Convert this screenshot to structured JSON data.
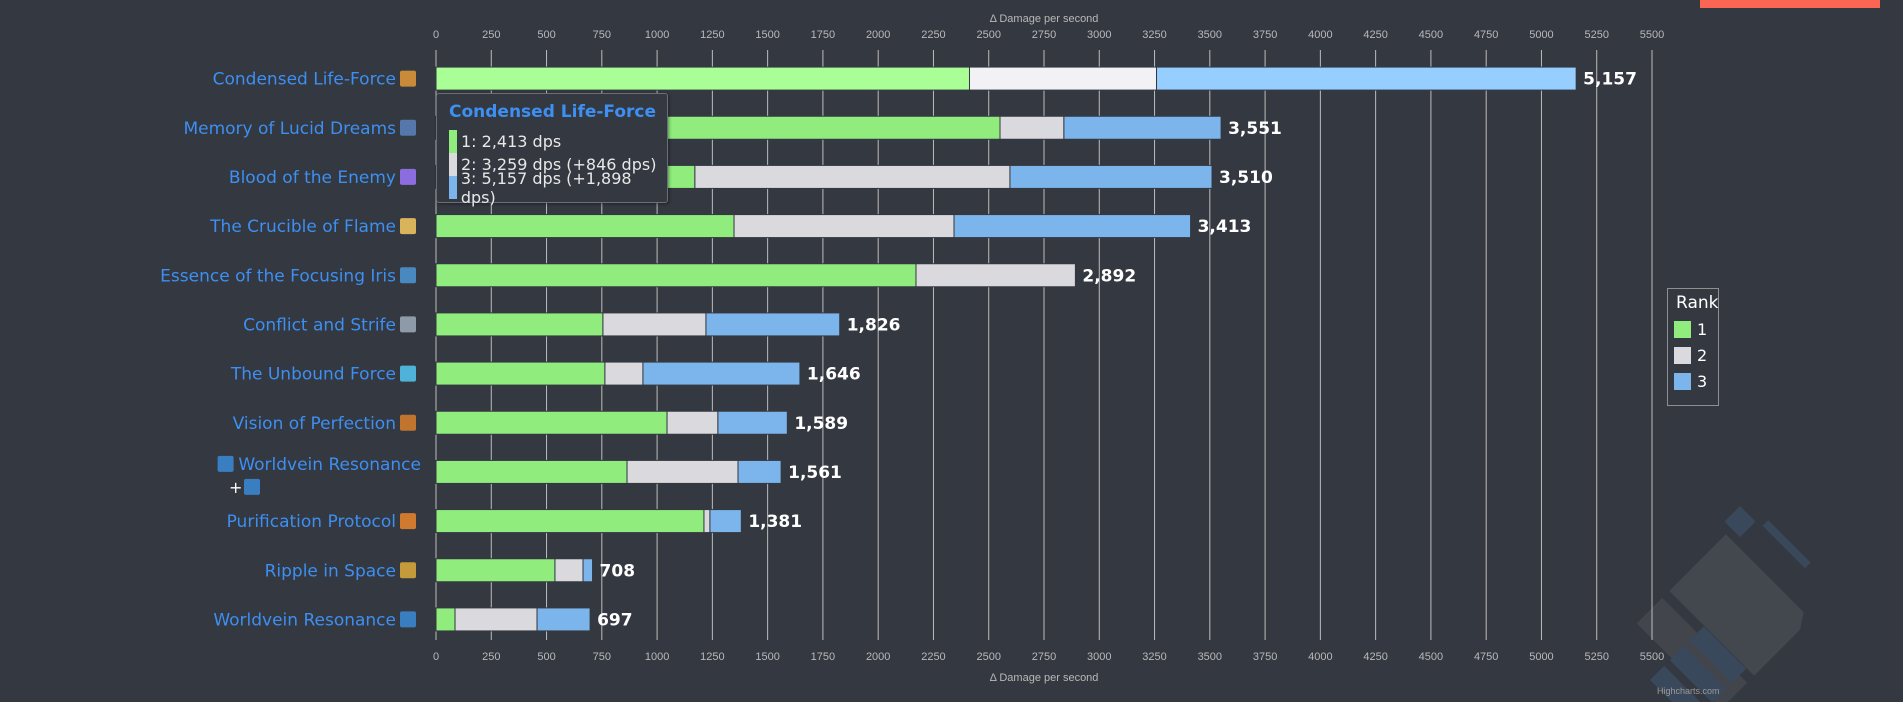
{
  "chart_data": {
    "type": "bar",
    "orientation": "horizontal",
    "stacking": "incremental ranks (rank 2 and 3 bars extend from previous rank)",
    "xlabel": "Δ Damage per second",
    "ylabel": "",
    "xlim": [
      0,
      5500
    ],
    "x_ticks": [
      "0",
      "250",
      "500",
      "750",
      "1000",
      "1250",
      "1500",
      "1750",
      "2000",
      "2250",
      "2500",
      "2750",
      "3000",
      "3250",
      "3500",
      "3750",
      "4000",
      "4250",
      "4500",
      "4750",
      "5000",
      "5250",
      "5500"
    ],
    "grid": true,
    "legend": {
      "title": "Rank",
      "position": "right",
      "entries": [
        "1",
        "2",
        "3"
      ]
    },
    "categories": [
      {
        "label": "Condensed Life-Force",
        "icon": "condensed-life-force-icon",
        "prefix": ""
      },
      {
        "label": "Memory of Lucid Dreams",
        "icon": "memory-of-lucid-dreams-icon",
        "prefix": ""
      },
      {
        "label": "Blood of the Enemy",
        "icon": "blood-of-the-enemy-icon",
        "prefix": ""
      },
      {
        "label": "The Crucible of Flame",
        "icon": "crucible-of-flame-icon",
        "prefix": ""
      },
      {
        "label": "Essence of the Focusing Iris",
        "icon": "focusing-iris-icon",
        "prefix": ""
      },
      {
        "label": "Conflict and Strife",
        "icon": "conflict-and-strife-icon",
        "prefix": ""
      },
      {
        "label": "The Unbound Force",
        "icon": "unbound-force-icon",
        "prefix": ""
      },
      {
        "label": "Vision of Perfection",
        "icon": "vision-of-perfection-icon",
        "prefix": ""
      },
      {
        "label": "Worldvein Resonance",
        "icon": "worldvein-resonance-icon",
        "prefix": "worldvein-resonance-icon",
        "second_line": "+"
      },
      {
        "label": "Purification Protocol",
        "icon": "purification-protocol-icon",
        "prefix": ""
      },
      {
        "label": "Ripple in Space",
        "icon": "ripple-in-space-icon",
        "prefix": ""
      },
      {
        "label": "Worldvein Resonance",
        "icon": "worldvein-resonance-icon",
        "prefix": ""
      }
    ],
    "series": [
      {
        "name": "1",
        "color": "#90ed7d",
        "values": [
          2413,
          2551,
          1171,
          1348,
          2171,
          755,
          764,
          1045,
          864,
          1212,
          538,
          86
        ]
      },
      {
        "name": "2",
        "color": "#d9d9de",
        "values": [
          3259,
          2840,
          2596,
          2343,
          2892,
          1221,
          936,
          1275,
          1366,
          1239,
          665,
          457
        ]
      },
      {
        "name": "3",
        "color": "#7cb5ec",
        "values": [
          5157,
          3551,
          3510,
          3413,
          null,
          1826,
          1646,
          1589,
          1561,
          1381,
          708,
          697
        ]
      }
    ],
    "total_labels": [
      "5,157",
      "3,551",
      "3,510",
      "3,413",
      "2,892",
      "1,826",
      "1,646",
      "1,589",
      "1,561",
      "1,381",
      "708",
      "697"
    ],
    "highlighted_index": 0,
    "highlight_colors": {
      "1": "#a9ff96",
      "2": "#f2f2f6",
      "3": "#95ceff"
    }
  },
  "tooltip": {
    "title": "Condensed Life-Force",
    "rows": [
      {
        "text": "1:  2,413 dps",
        "color": "#90ed7d"
      },
      {
        "text": "2:  3,259 dps (+846 dps)",
        "color": "#d9d9de"
      },
      {
        "text": "3:  5,157 dps (+1,898 dps)",
        "color": "#7cb5ec"
      }
    ]
  },
  "legend": {
    "title": "Rank",
    "items": [
      {
        "label": "1",
        "color": "#90ed7d"
      },
      {
        "label": "2",
        "color": "#d9d9de"
      },
      {
        "label": "3",
        "color": "#7cb5ec"
      }
    ]
  },
  "credits": "Highcharts.com",
  "colors": {
    "background": "#343840",
    "label": "#3d8ff2",
    "accent_button": "#fa6653"
  }
}
